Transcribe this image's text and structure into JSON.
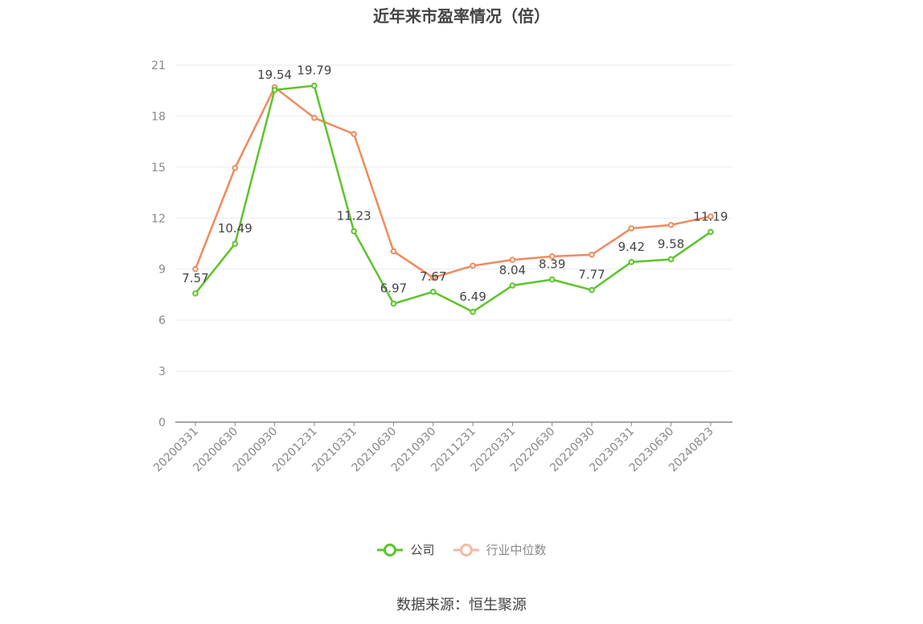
{
  "page": {
    "title": "近年来市盈率情况（倍）",
    "source": "数据来源：恒生聚源"
  },
  "colors": {
    "company": "#5cc42b",
    "industry": "#f08a5d",
    "industry_legend": "#f6b9a0",
    "grid": "#e6e9f2",
    "axis": "#888888",
    "tick_text": "#888888",
    "label_text": "#444444"
  },
  "chart_data": {
    "type": "line",
    "title": "近年来市盈率情况（倍）",
    "xlabel": "",
    "ylabel": "",
    "ylim": [
      0,
      21
    ],
    "yticks": [
      0,
      3,
      6,
      9,
      12,
      15,
      18,
      21
    ],
    "categories": [
      "20200331",
      "20200630",
      "20200930",
      "20201231",
      "20210331",
      "20210630",
      "20210930",
      "20211231",
      "20220331",
      "20220630",
      "20220930",
      "20230331",
      "20230630",
      "20240823"
    ],
    "grid": true,
    "legend_position": "bottom-center",
    "series": [
      {
        "name": "公司",
        "values": [
          7.57,
          10.49,
          19.54,
          19.79,
          11.23,
          6.97,
          7.67,
          6.49,
          8.04,
          8.39,
          7.77,
          9.42,
          9.58,
          11.19
        ],
        "labels": [
          "7.57",
          "10.49",
          "19.54",
          "19.79",
          "11.23",
          "6.97",
          "7.67",
          "6.49",
          "8.04",
          "8.39",
          "7.77",
          "9.42",
          "9.58",
          "11.19"
        ]
      },
      {
        "name": "行业中位数",
        "values": [
          9.0,
          14.95,
          19.7,
          17.9,
          16.95,
          10.05,
          8.5,
          9.2,
          9.55,
          9.75,
          9.85,
          11.4,
          11.6,
          12.1
        ]
      }
    ]
  }
}
